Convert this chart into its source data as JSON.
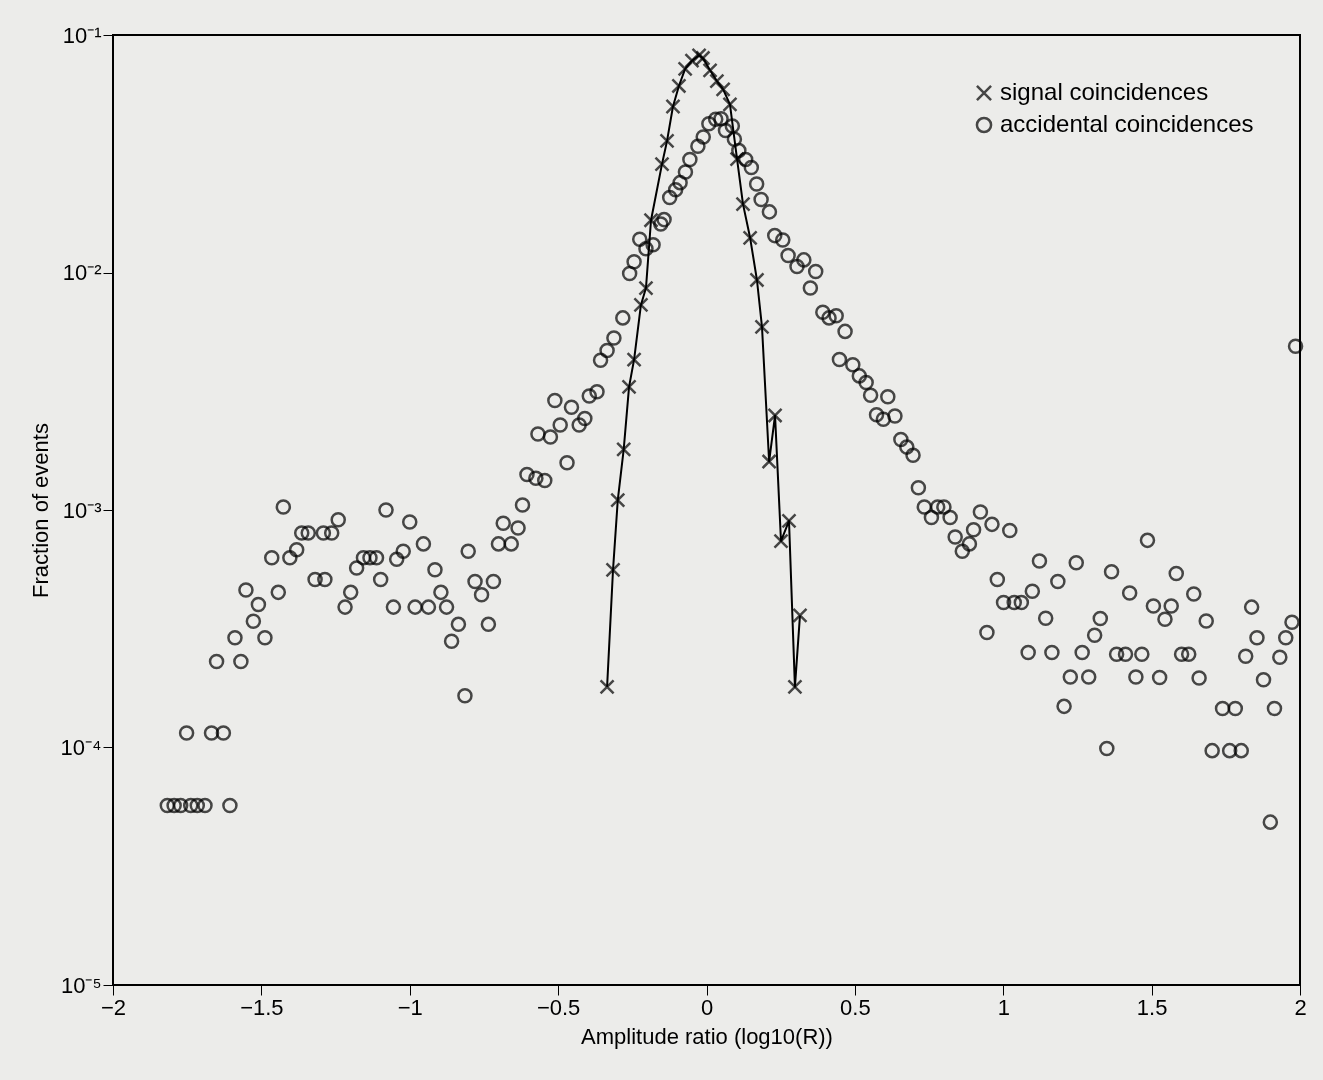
{
  "chart_data": {
    "type": "scatter",
    "xlabel": "Amplitude ratio (log10(R))",
    "ylabel": "Fraction of events",
    "xlim": [
      -2,
      2
    ],
    "xticks": [
      -2,
      -1.5,
      -1,
      -0.5,
      0,
      0.5,
      1,
      1.5,
      2
    ],
    "ylim": [
      1e-05,
      0.1
    ],
    "yticks": [
      {
        "value": 1e-05,
        "label": "10⁻⁵"
      },
      {
        "value": 0.0001,
        "label": "10⁻⁴"
      },
      {
        "value": 0.001,
        "label": "10⁻³"
      },
      {
        "value": 0.01,
        "label": "10⁻²"
      },
      {
        "value": 0.1,
        "label": "10⁻¹"
      }
    ],
    "log": true,
    "grid": false,
    "legend": "top right",
    "series": [
      {
        "name": "signal coincidences",
        "type": "line",
        "marker": "cross",
        "line_style": "solid",
        "color": "#000000",
        "x": [
          -0.335,
          -0.315,
          -0.299,
          -0.279,
          -0.261,
          -0.244,
          -0.221,
          -0.204,
          -0.187,
          -0.15,
          -0.133,
          -0.113,
          -0.093,
          -0.072,
          -0.049,
          -0.025,
          -0.012,
          0.012,
          0.035,
          0.056,
          0.079,
          0.103,
          0.123,
          0.147,
          0.17,
          0.187,
          0.211,
          0.231,
          0.251,
          0.278,
          0.298,
          0.315
        ],
        "values": [
          0.00018,
          0.00056,
          0.0011,
          0.0018,
          0.0033,
          0.0043,
          0.0073,
          0.0086,
          0.0166,
          0.0286,
          0.0358,
          0.05,
          0.061,
          0.072,
          0.078,
          0.082,
          0.08,
          0.071,
          0.064,
          0.059,
          0.051,
          0.03,
          0.0194,
          0.014,
          0.0093,
          0.0059,
          0.0016,
          0.0025,
          0.00074,
          0.0009,
          0.00018,
          0.00036
        ]
      },
      {
        "name": "accidental coincidences",
        "marker": "circle",
        "color": "#000000",
        "x": [
          -1.817,
          -1.794,
          -1.772,
          -1.738,
          -1.716,
          -1.69,
          -1.606,
          -1.752,
          -1.668,
          -1.628,
          -1.651,
          -1.569,
          -1.589,
          -1.527,
          -1.51,
          -1.552,
          -1.488,
          -1.443,
          -1.465,
          -1.426,
          -1.404,
          -1.381,
          -1.364,
          -1.342,
          -1.319,
          -1.286,
          -1.291,
          -1.263,
          -1.241,
          -1.218,
          -1.199,
          -1.179,
          -1.156,
          -1.134,
          -1.112,
          -1.098,
          -1.08,
          -1.055,
          -1.044,
          -1.022,
          -1.0,
          -0.982,
          -0.954,
          -0.937,
          -0.915,
          -0.895,
          -0.876,
          -0.836,
          -0.859,
          -0.814,
          -0.803,
          -0.78,
          -0.758,
          -0.735,
          -0.718,
          -0.701,
          -0.685,
          -0.658,
          -0.635,
          -0.62,
          -0.605,
          -0.575,
          -0.545,
          -0.568,
          -0.526,
          -0.47,
          -0.493,
          -0.511,
          -0.455,
          -0.429,
          -0.41,
          -0.395,
          -0.369,
          -0.357,
          -0.335,
          -0.312,
          -0.282,
          -0.259,
          -0.244,
          -0.225,
          -0.204,
          -0.18,
          -0.154,
          -0.143,
          -0.124,
          -0.104,
          -0.089,
          -0.071,
          -0.056,
          -0.029,
          -0.011,
          0.008,
          0.031,
          0.049,
          0.064,
          0.087,
          0.094,
          0.109,
          0.132,
          0.151,
          0.169,
          0.184,
          0.212,
          0.23,
          0.257,
          0.275,
          0.305,
          0.328,
          0.35,
          0.368,
          0.392,
          0.413,
          0.437,
          0.467,
          0.448,
          0.493,
          0.515,
          0.538,
          0.553,
          0.573,
          0.596,
          0.611,
          0.635,
          0.655,
          0.675,
          0.696,
          0.714,
          0.734,
          0.758,
          0.779,
          0.8,
          0.821,
          0.838,
          0.862,
          0.886,
          0.9,
          0.923,
          0.962,
          1.022,
          0.945,
          0.98,
          1.001,
          1.037,
          1.061,
          1.098,
          1.122,
          1.143,
          1.084,
          1.164,
          1.184,
          1.205,
          1.226,
          1.246,
          1.266,
          1.288,
          1.308,
          1.327,
          1.349,
          1.365,
          1.382,
          1.412,
          1.426,
          1.447,
          1.467,
          1.486,
          1.506,
          1.527,
          1.545,
          1.566,
          1.583,
          1.601,
          1.625,
          1.642,
          1.66,
          1.684,
          1.704,
          1.739,
          1.763,
          1.782,
          1.802,
          1.817,
          1.837,
          1.855,
          1.877,
          1.9,
          1.914,
          1.932,
          1.952,
          1.973,
          1.985
        ],
        "values": [
          5.7e-05,
          5.7e-05,
          5.7e-05,
          5.7e-05,
          5.7e-05,
          5.7e-05,
          5.7e-05,
          0.000115,
          0.000115,
          0.000115,
          0.00023,
          0.00023,
          0.00029,
          0.00034,
          0.0004,
          0.00046,
          0.00029,
          0.00045,
          0.00063,
          0.00103,
          0.00063,
          0.00068,
          0.0008,
          0.0008,
          0.00051,
          0.00051,
          0.0008,
          0.0008,
          0.00091,
          0.00039,
          0.00045,
          0.00057,
          0.00063,
          0.00063,
          0.00063,
          0.00051,
          0.001,
          0.00039,
          0.00062,
          0.00067,
          0.00089,
          0.00039,
          0.00072,
          0.00039,
          0.00056,
          0.00045,
          0.00039,
          0.00033,
          0.00028,
          0.000165,
          0.00067,
          0.0005,
          0.00044,
          0.00033,
          0.0005,
          0.00072,
          0.00088,
          0.00072,
          0.00084,
          0.00105,
          0.00141,
          0.00136,
          0.00133,
          0.00209,
          0.00203,
          0.00158,
          0.00228,
          0.00289,
          0.00271,
          0.00228,
          0.00243,
          0.00302,
          0.00315,
          0.00427,
          0.00469,
          0.0053,
          0.00644,
          0.0099,
          0.0111,
          0.0138,
          0.0126,
          0.0131,
          0.016,
          0.0167,
          0.0207,
          0.0223,
          0.0239,
          0.0265,
          0.0299,
          0.034,
          0.0372,
          0.0423,
          0.0442,
          0.0444,
          0.0396,
          0.0414,
          0.0364,
          0.0326,
          0.0299,
          0.0277,
          0.0236,
          0.0203,
          0.018,
          0.0143,
          0.0137,
          0.0118,
          0.0106,
          0.0113,
          0.0086,
          0.0101,
          0.0068,
          0.00644,
          0.00658,
          0.00565,
          0.0043,
          0.00409,
          0.00367,
          0.00344,
          0.00304,
          0.00252,
          0.00241,
          0.003,
          0.00249,
          0.00198,
          0.00184,
          0.0017,
          0.00124,
          0.00103,
          0.00093,
          0.00103,
          0.00103,
          0.00093,
          0.00077,
          0.00067,
          0.00072,
          0.000825,
          0.00098,
          0.00087,
          0.00082,
          0.000305,
          0.00051,
          0.000408,
          0.000408,
          0.000408,
          0.000455,
          0.00061,
          0.00035,
          0.000251,
          0.000251,
          0.0005,
          0.000149,
          0.000198,
          0.0006,
          0.000251,
          0.000198,
          0.000297,
          0.000349,
          9.9e-05,
          0.00055,
          0.000247,
          0.000247,
          0.000447,
          0.000198,
          0.000247,
          0.000745,
          0.000394,
          0.000197,
          0.000347,
          0.000394,
          0.00054,
          0.000247,
          0.000247,
          0.000443,
          0.000196,
          0.000341,
          9.7e-05,
          0.000146,
          9.7e-05,
          0.000146,
          9.7e-05,
          0.000242,
          0.00039,
          0.00029,
          0.000193,
          4.85e-05,
          0.000146,
          0.00024,
          0.00029,
          0.000337,
          0.00489
        ]
      }
    ]
  }
}
